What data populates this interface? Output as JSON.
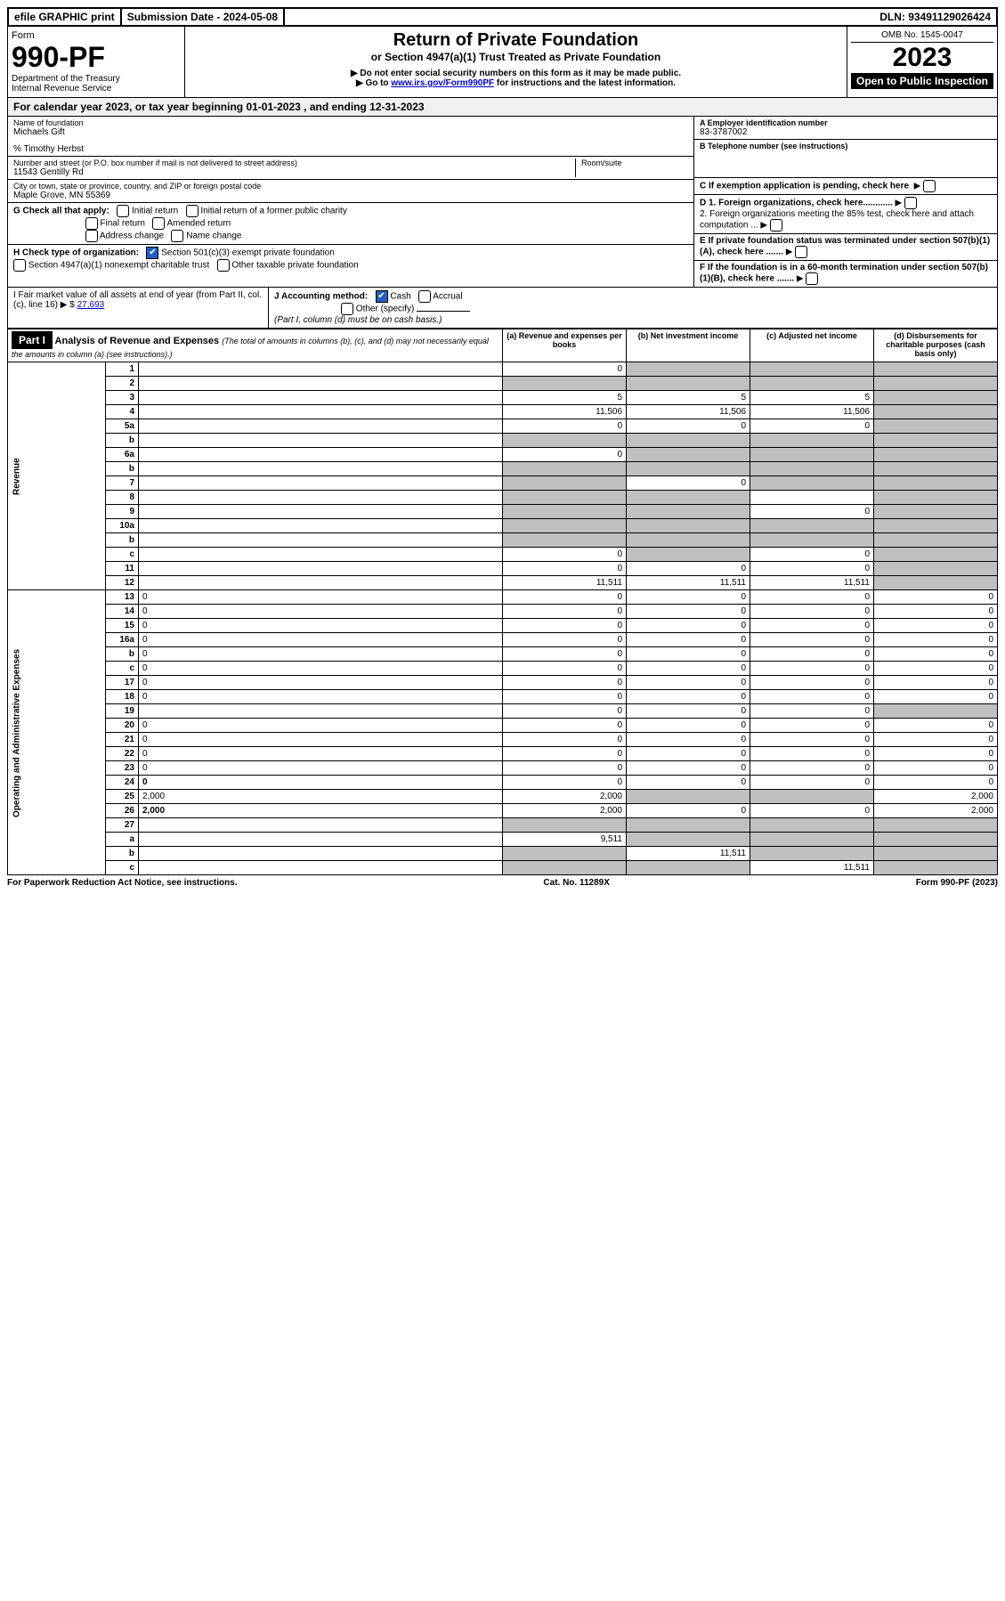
{
  "topbar": {
    "efile": "efile GRAPHIC print",
    "submission": "Submission Date - 2024-05-08",
    "dln": "DLN: 93491129026424"
  },
  "header": {
    "form_label": "Form",
    "form_number": "990-PF",
    "dept": "Department of the Treasury",
    "irs": "Internal Revenue Service",
    "title": "Return of Private Foundation",
    "subtitle": "or Section 4947(a)(1) Trust Treated as Private Foundation",
    "note1": "▶ Do not enter social security numbers on this form as it may be made public.",
    "note2_pre": "▶ Go to ",
    "note2_link": "www.irs.gov/Form990PF",
    "note2_post": " for instructions and the latest information.",
    "omb": "OMB No. 1545-0047",
    "year": "2023",
    "open": "Open to Public Inspection"
  },
  "calyear": "For calendar year 2023, or tax year beginning 01-01-2023                         , and ending 12-31-2023",
  "info": {
    "name_label": "Name of foundation",
    "name": "Michaels Gift",
    "care_of": "% Timothy Herbst",
    "addr_label": "Number and street (or P.O. box number if mail is not delivered to street address)",
    "addr": "11543 Gentilly Rd",
    "room_label": "Room/suite",
    "city_label": "City or town, state or province, country, and ZIP or foreign postal code",
    "city": "Maple Grove, MN  55369",
    "ein_label": "A Employer identification number",
    "ein": "83-3787002",
    "phone_label": "B Telephone number (see instructions)",
    "exempt_label": "C If exemption application is pending, check here",
    "d1": "D 1. Foreign organizations, check here............",
    "d2": "2. Foreign organizations meeting the 85% test, check here and attach computation ...",
    "e": "E  If private foundation status was terminated under section 507(b)(1)(A), check here .......",
    "f": "F  If the foundation is in a 60-month termination under section 507(b)(1)(B), check here .......",
    "g_label": "G Check all that apply:",
    "g_opts": [
      "Initial return",
      "Initial return of a former public charity",
      "Final return",
      "Amended return",
      "Address change",
      "Name change"
    ],
    "h_label": "H Check type of organization:",
    "h_opt1": "Section 501(c)(3) exempt private foundation",
    "h_opt2": "Section 4947(a)(1) nonexempt charitable trust",
    "h_opt3": "Other taxable private foundation",
    "i_label": "I Fair market value of all assets at end of year (from Part II, col. (c), line 16)",
    "i_val": "27,693",
    "j_label": "J Accounting method:",
    "j_cash": "Cash",
    "j_accrual": "Accrual",
    "j_other": "Other (specify)",
    "j_note": "(Part I, column (d) must be on cash basis.)"
  },
  "part1": {
    "label": "Part I",
    "title": "Analysis of Revenue and Expenses",
    "title_note": "(The total of amounts in columns (b), (c), and (d) may not necessarily equal the amounts in column (a) (see instructions).)",
    "col_a": "(a)  Revenue and expenses per books",
    "col_b": "(b)  Net investment income",
    "col_c": "(c)  Adjusted net income",
    "col_d": "(d)  Disbursements for charitable purposes (cash basis only)",
    "revenue_label": "Revenue",
    "expenses_label": "Operating and Administrative Expenses"
  },
  "rows": [
    {
      "n": "1",
      "d": "",
      "a": "0",
      "b": "",
      "c": "",
      "ga": false,
      "gb": true,
      "gc": true,
      "gd": true
    },
    {
      "n": "2",
      "d": "",
      "a": "",
      "b": "",
      "c": "",
      "ga": true,
      "gb": true,
      "gc": true,
      "gd": true
    },
    {
      "n": "3",
      "d": "",
      "a": "5",
      "b": "5",
      "c": "5",
      "ga": false,
      "gb": false,
      "gc": false,
      "gd": true
    },
    {
      "n": "4",
      "d": "",
      "a": "11,506",
      "b": "11,506",
      "c": "11,506",
      "ga": false,
      "gb": false,
      "gc": false,
      "gd": true
    },
    {
      "n": "5a",
      "d": "",
      "a": "0",
      "b": "0",
      "c": "0",
      "ga": false,
      "gb": false,
      "gc": false,
      "gd": true
    },
    {
      "n": "b",
      "d": "",
      "a": "",
      "b": "",
      "c": "",
      "ga": true,
      "gb": true,
      "gc": true,
      "gd": true
    },
    {
      "n": "6a",
      "d": "",
      "a": "0",
      "b": "",
      "c": "",
      "ga": false,
      "gb": true,
      "gc": true,
      "gd": true
    },
    {
      "n": "b",
      "d": "",
      "a": "",
      "b": "",
      "c": "",
      "ga": true,
      "gb": true,
      "gc": true,
      "gd": true
    },
    {
      "n": "7",
      "d": "",
      "a": "",
      "b": "0",
      "c": "",
      "ga": true,
      "gb": false,
      "gc": true,
      "gd": true
    },
    {
      "n": "8",
      "d": "",
      "a": "",
      "b": "",
      "c": "",
      "ga": true,
      "gb": true,
      "gc": false,
      "gd": true
    },
    {
      "n": "9",
      "d": "",
      "a": "",
      "b": "",
      "c": "0",
      "ga": true,
      "gb": true,
      "gc": false,
      "gd": true
    },
    {
      "n": "10a",
      "d": "",
      "a": "",
      "b": "",
      "c": "",
      "ga": true,
      "gb": true,
      "gc": true,
      "gd": true
    },
    {
      "n": "b",
      "d": "",
      "a": "",
      "b": "",
      "c": "",
      "ga": true,
      "gb": true,
      "gc": true,
      "gd": true
    },
    {
      "n": "c",
      "d": "",
      "a": "0",
      "b": "",
      "c": "0",
      "ga": false,
      "gb": true,
      "gc": false,
      "gd": true
    },
    {
      "n": "11",
      "d": "",
      "a": "0",
      "b": "0",
      "c": "0",
      "ga": false,
      "gb": false,
      "gc": false,
      "gd": true
    },
    {
      "n": "12",
      "d": "",
      "a": "11,511",
      "b": "11,511",
      "c": "11,511",
      "ga": false,
      "gb": false,
      "gc": false,
      "gd": true,
      "bold": true
    },
    {
      "n": "13",
      "d": "0",
      "a": "0",
      "b": "0",
      "c": "0",
      "ga": false,
      "gb": false,
      "gc": false,
      "gd": false
    },
    {
      "n": "14",
      "d": "0",
      "a": "0",
      "b": "0",
      "c": "0",
      "ga": false,
      "gb": false,
      "gc": false,
      "gd": false
    },
    {
      "n": "15",
      "d": "0",
      "a": "0",
      "b": "0",
      "c": "0",
      "ga": false,
      "gb": false,
      "gc": false,
      "gd": false
    },
    {
      "n": "16a",
      "d": "0",
      "a": "0",
      "b": "0",
      "c": "0",
      "ga": false,
      "gb": false,
      "gc": false,
      "gd": false
    },
    {
      "n": "b",
      "d": "0",
      "a": "0",
      "b": "0",
      "c": "0",
      "ga": false,
      "gb": false,
      "gc": false,
      "gd": false
    },
    {
      "n": "c",
      "d": "0",
      "a": "0",
      "b": "0",
      "c": "0",
      "ga": false,
      "gb": false,
      "gc": false,
      "gd": false
    },
    {
      "n": "17",
      "d": "0",
      "a": "0",
      "b": "0",
      "c": "0",
      "ga": false,
      "gb": false,
      "gc": false,
      "gd": false
    },
    {
      "n": "18",
      "d": "0",
      "a": "0",
      "b": "0",
      "c": "0",
      "ga": false,
      "gb": false,
      "gc": false,
      "gd": false
    },
    {
      "n": "19",
      "d": "",
      "a": "0",
      "b": "0",
      "c": "0",
      "ga": false,
      "gb": false,
      "gc": false,
      "gd": true
    },
    {
      "n": "20",
      "d": "0",
      "a": "0",
      "b": "0",
      "c": "0",
      "ga": false,
      "gb": false,
      "gc": false,
      "gd": false
    },
    {
      "n": "21",
      "d": "0",
      "a": "0",
      "b": "0",
      "c": "0",
      "ga": false,
      "gb": false,
      "gc": false,
      "gd": false
    },
    {
      "n": "22",
      "d": "0",
      "a": "0",
      "b": "0",
      "c": "0",
      "ga": false,
      "gb": false,
      "gc": false,
      "gd": false
    },
    {
      "n": "23",
      "d": "0",
      "a": "0",
      "b": "0",
      "c": "0",
      "ga": false,
      "gb": false,
      "gc": false,
      "gd": false
    },
    {
      "n": "24",
      "d": "0",
      "a": "0",
      "b": "0",
      "c": "0",
      "ga": false,
      "gb": false,
      "gc": false,
      "gd": false,
      "bold": true
    },
    {
      "n": "25",
      "d": "2,000",
      "a": "2,000",
      "b": "",
      "c": "",
      "ga": false,
      "gb": true,
      "gc": true,
      "gd": false
    },
    {
      "n": "26",
      "d": "2,000",
      "a": "2,000",
      "b": "0",
      "c": "0",
      "ga": false,
      "gb": false,
      "gc": false,
      "gd": false,
      "bold": true
    },
    {
      "n": "27",
      "d": "",
      "a": "",
      "b": "",
      "c": "",
      "ga": true,
      "gb": true,
      "gc": true,
      "gd": true
    },
    {
      "n": "a",
      "d": "",
      "a": "9,511",
      "b": "",
      "c": "",
      "ga": false,
      "gb": true,
      "gc": true,
      "gd": true,
      "bold": true
    },
    {
      "n": "b",
      "d": "",
      "a": "",
      "b": "11,511",
      "c": "",
      "ga": true,
      "gb": false,
      "gc": true,
      "gd": true,
      "bold": true
    },
    {
      "n": "c",
      "d": "",
      "a": "",
      "b": "",
      "c": "11,511",
      "ga": true,
      "gb": true,
      "gc": false,
      "gd": true,
      "bold": true
    }
  ],
  "footer": {
    "left": "For Paperwork Reduction Act Notice, see instructions.",
    "center": "Cat. No. 11289X",
    "right": "Form 990-PF (2023)"
  }
}
